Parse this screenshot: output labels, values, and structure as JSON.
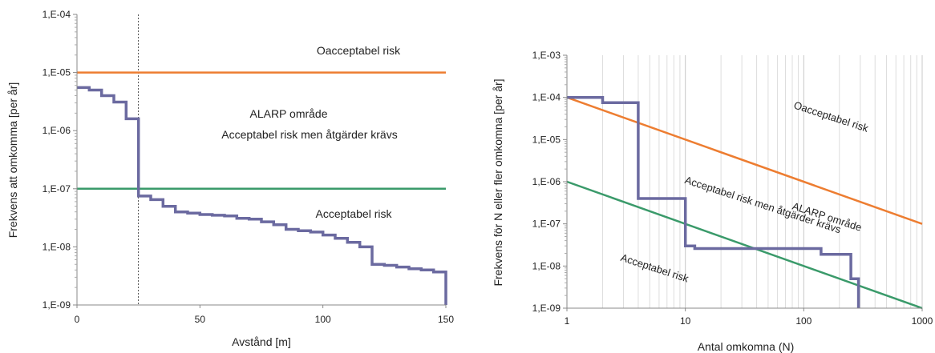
{
  "chart_data": [
    {
      "type": "line",
      "xlabel": "Avstånd [m]",
      "ylabel": "Frekvens att omkomma  [per år]",
      "xlim": [
        0,
        150
      ],
      "ylim": [
        1e-09,
        0.0001
      ],
      "yscale": "log",
      "x_ticks": [
        0,
        50,
        100,
        150
      ],
      "y_ticks": [
        "1,E-09",
        "1,E-08",
        "1,E-07",
        "1,E-06",
        "1,E-05",
        "1,E-04"
      ],
      "annotations": [
        "Oacceptabel risk",
        "ALARP område",
        "Acceptabel risk men åtgärder krävs",
        "Acceptabel risk"
      ],
      "reference_line_x": 25,
      "series": [
        {
          "role": "upper-limit",
          "color": "#ED7D31",
          "x": [
            0,
            150
          ],
          "y": [
            1e-05,
            1e-05
          ]
        },
        {
          "role": "lower-limit",
          "color": "#3A9A6A",
          "x": [
            0,
            150
          ],
          "y": [
            1e-07,
            1e-07
          ]
        },
        {
          "role": "risk",
          "color": "#6B6AA0",
          "x": [
            0,
            5,
            5,
            10,
            10,
            15,
            15,
            20,
            20,
            25,
            25,
            30,
            30,
            35,
            35,
            40,
            40,
            45,
            45,
            50,
            50,
            55,
            55,
            60,
            60,
            65,
            65,
            70,
            70,
            75,
            75,
            80,
            80,
            85,
            85,
            90,
            90,
            95,
            95,
            100,
            100,
            105,
            105,
            110,
            110,
            115,
            115,
            120,
            120,
            125,
            125,
            130,
            130,
            135,
            135,
            140,
            140,
            145,
            145,
            150,
            150
          ],
          "y": [
            5.5e-06,
            5.5e-06,
            5e-06,
            5e-06,
            4e-06,
            4e-06,
            3.1e-06,
            3.1e-06,
            1.6e-06,
            1.6e-06,
            7.5e-08,
            7.5e-08,
            6.5e-08,
            6.5e-08,
            5e-08,
            5e-08,
            4e-08,
            4e-08,
            3.8e-08,
            3.8e-08,
            3.6e-08,
            3.6e-08,
            3.5e-08,
            3.5e-08,
            3.4e-08,
            3.4e-08,
            3.1e-08,
            3.1e-08,
            3e-08,
            3e-08,
            2.7e-08,
            2.7e-08,
            2.4e-08,
            2.4e-08,
            2e-08,
            2e-08,
            1.9e-08,
            1.9e-08,
            1.8e-08,
            1.8e-08,
            1.6e-08,
            1.6e-08,
            1.4e-08,
            1.4e-08,
            1.2e-08,
            1.2e-08,
            1e-08,
            1e-08,
            5e-09,
            5e-09,
            4.8e-09,
            4.8e-09,
            4.5e-09,
            4.5e-09,
            4.2e-09,
            4.2e-09,
            4e-09,
            4e-09,
            3.7e-09,
            3.7e-09,
            1e-09
          ]
        }
      ]
    },
    {
      "type": "line",
      "xlabel": "Antal omkomna (N)",
      "ylabel": "Frekvens för N eller fler omkomna [per år]",
      "xlim": [
        1,
        1000
      ],
      "ylim": [
        1e-09,
        0.001
      ],
      "xscale": "log",
      "yscale": "log",
      "x_ticks": [
        "1",
        "10",
        "100",
        "1000"
      ],
      "y_ticks": [
        "1,E-09",
        "1,E-08",
        "1,E-07",
        "1,E-06",
        "1,E-05",
        "1,E-04",
        "1,E-03"
      ],
      "annotations": [
        "Oacceptabel risk",
        "ALARP område",
        "Acceptabel risk  men åtgärder krävs",
        "Acceptabel risk"
      ],
      "series": [
        {
          "role": "upper-limit",
          "color": "#ED7D31",
          "x": [
            1,
            1000
          ],
          "y": [
            0.0001,
            1e-07
          ]
        },
        {
          "role": "lower-limit",
          "color": "#3A9A6A",
          "x": [
            1,
            1000
          ],
          "y": [
            1e-06,
            1e-09
          ]
        },
        {
          "role": "risk",
          "color": "#6B6AA0",
          "x": [
            1,
            2,
            2,
            4,
            4,
            10,
            10,
            12,
            12,
            140,
            140,
            250,
            250,
            290,
            290
          ],
          "y": [
            0.0001,
            0.0001,
            7.5e-05,
            7.5e-05,
            4e-07,
            4e-07,
            3e-08,
            3e-08,
            2.6e-08,
            2.6e-08,
            1.9e-08,
            1.9e-08,
            5e-09,
            5e-09,
            1e-09
          ]
        }
      ]
    }
  ]
}
